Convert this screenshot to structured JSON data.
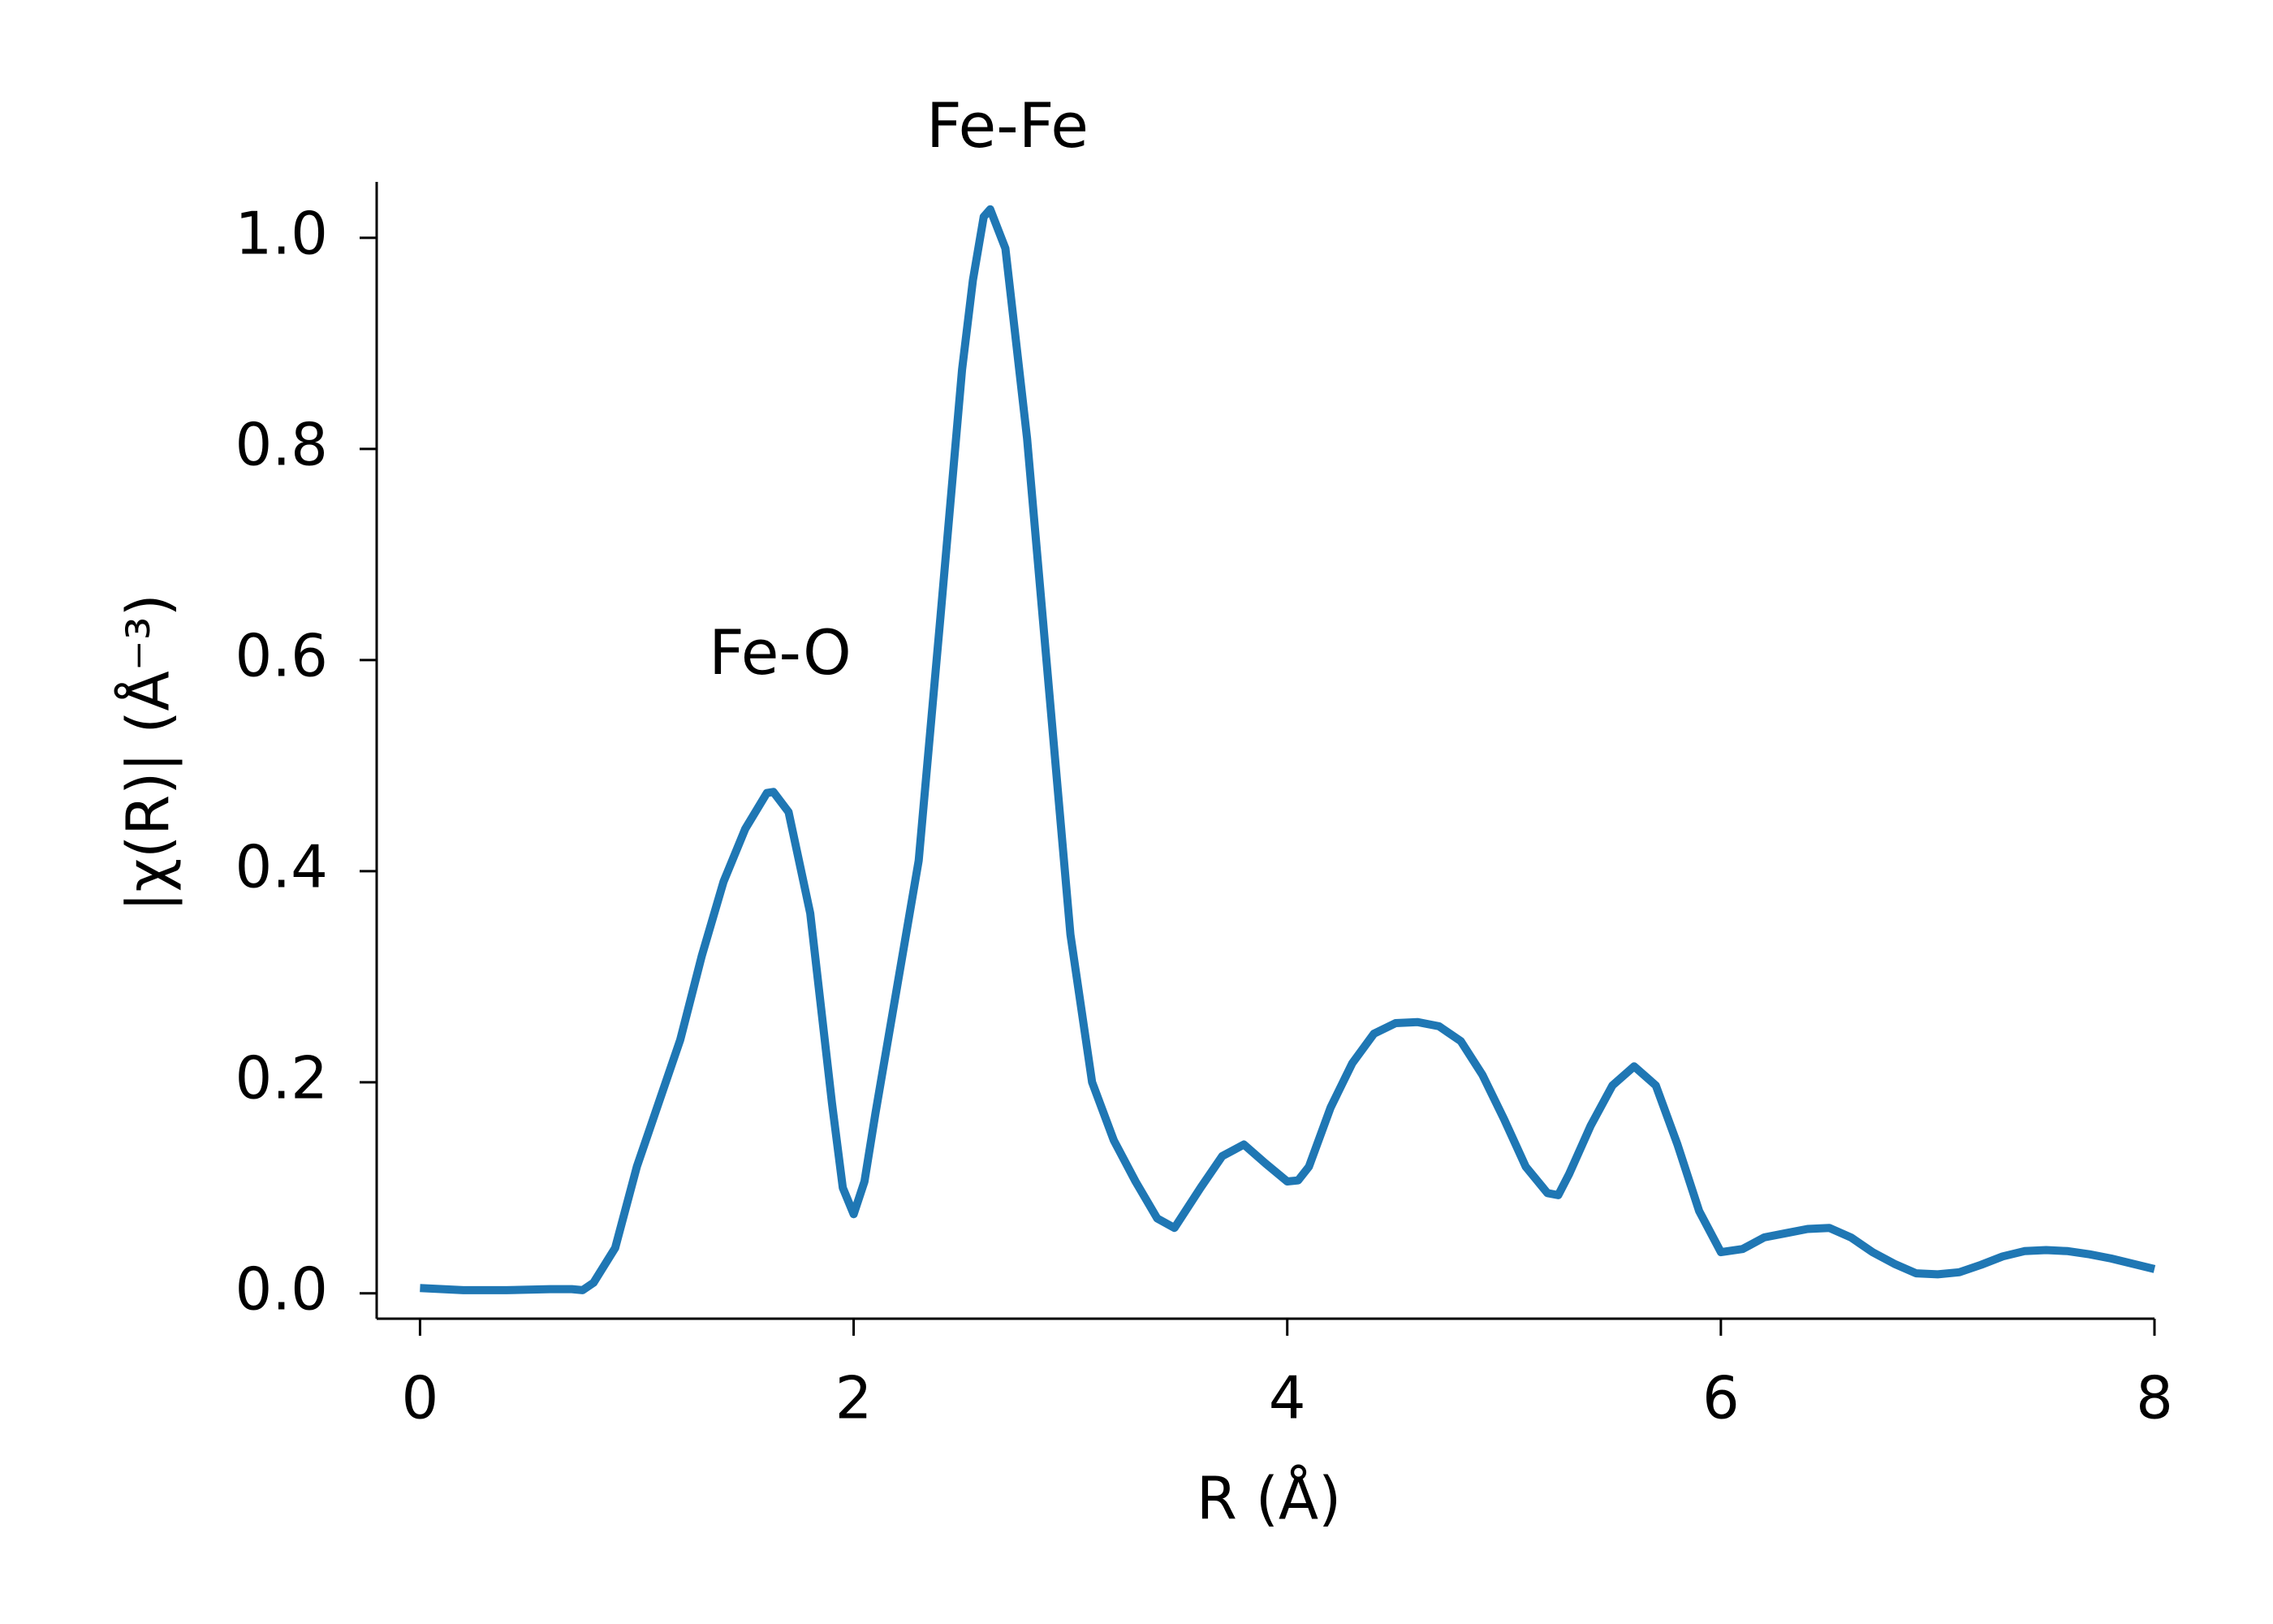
{
  "chart_data": {
    "type": "line",
    "xlabel": "R (Å)",
    "ylabel": "|χ(R)| (Å⁻³)",
    "annotations": [
      "Fe-Fe",
      "Fe-O"
    ],
    "x": [
      0,
      0.2,
      0.4,
      0.6,
      0.7,
      0.75,
      0.8,
      0.9,
      1.0,
      1.1,
      1.2,
      1.3,
      1.4,
      1.5,
      1.6,
      1.63,
      1.7,
      1.8,
      1.9,
      1.95,
      2.0,
      2.05,
      2.1,
      2.2,
      2.3,
      2.4,
      2.5,
      2.55,
      2.6,
      2.63,
      2.7,
      2.8,
      2.9,
      3.0,
      3.1,
      3.2,
      3.3,
      3.4,
      3.48,
      3.6,
      3.7,
      3.8,
      3.9,
      4.0,
      4.05,
      4.1,
      4.2,
      4.3,
      4.4,
      4.5,
      4.6,
      4.7,
      4.8,
      4.9,
      5.0,
      5.1,
      5.2,
      5.25,
      5.3,
      5.4,
      5.5,
      5.6,
      5.7,
      5.8,
      5.9,
      6.0,
      6.1,
      6.2,
      6.3,
      6.4,
      6.5,
      6.6,
      6.7,
      6.8,
      6.9,
      7.0,
      7.1,
      7.2,
      7.3,
      7.4,
      7.5,
      7.6,
      7.7,
      7.8,
      7.9,
      8.0
    ],
    "values": [
      0.005,
      0.003,
      0.003,
      0.004,
      0.004,
      0.003,
      0.01,
      0.043,
      0.12,
      0.18,
      0.24,
      0.32,
      0.39,
      0.44,
      0.474,
      0.475,
      0.456,
      0.36,
      0.18,
      0.1,
      0.075,
      0.106,
      0.17,
      0.29,
      0.41,
      0.64,
      0.875,
      0.96,
      1.02,
      1.027,
      0.99,
      0.81,
      0.575,
      0.34,
      0.2,
      0.145,
      0.106,
      0.071,
      0.062,
      0.1,
      0.13,
      0.141,
      0.123,
      0.106,
      0.107,
      0.12,
      0.176,
      0.218,
      0.246,
      0.256,
      0.257,
      0.253,
      0.239,
      0.207,
      0.165,
      0.12,
      0.095,
      0.093,
      0.113,
      0.159,
      0.197,
      0.215,
      0.197,
      0.141,
      0.078,
      0.039,
      0.042,
      0.053,
      0.057,
      0.061,
      0.062,
      0.053,
      0.039,
      0.028,
      0.019,
      0.018,
      0.02,
      0.027,
      0.035,
      0.04,
      0.041,
      0.04,
      0.037,
      0.033,
      0.028,
      0.023
    ],
    "color": "#1f77b4",
    "xlim": [
      -0.2,
      8.0
    ],
    "xticks": [
      0,
      2,
      4,
      6,
      8
    ],
    "ylim": [
      -0.024,
      1.053
    ],
    "yticks": [
      {
        "value": 0,
        "label": "0.0"
      },
      0.2,
      0.4,
      0.6,
      0.8,
      {
        "value": 1,
        "label": "1.0"
      }
    ]
  }
}
